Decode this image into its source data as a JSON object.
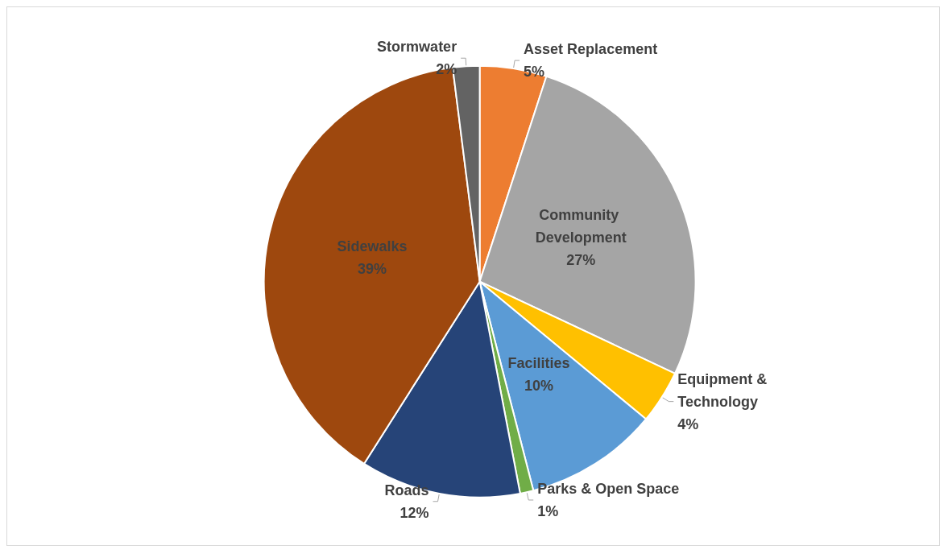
{
  "chart_data": {
    "type": "pie",
    "categories": [
      "Asset Replacement",
      "Community Development",
      "Equipment & Technology",
      "Facilities",
      "Parks & Open Space",
      "Roads",
      "Sidewalks",
      "Stormwater"
    ],
    "values": [
      5,
      27,
      4,
      10,
      1,
      12,
      39,
      2
    ],
    "colors": [
      "#ed7d31",
      "#a5a5a5",
      "#ffc000",
      "#5b9bd5",
      "#70ad47",
      "#264478",
      "#9e480e",
      "#636363"
    ],
    "value_labels": [
      "5%",
      "27%",
      "4%",
      "10%",
      "1%",
      "12%",
      "39%",
      "2%"
    ],
    "legend": false
  }
}
